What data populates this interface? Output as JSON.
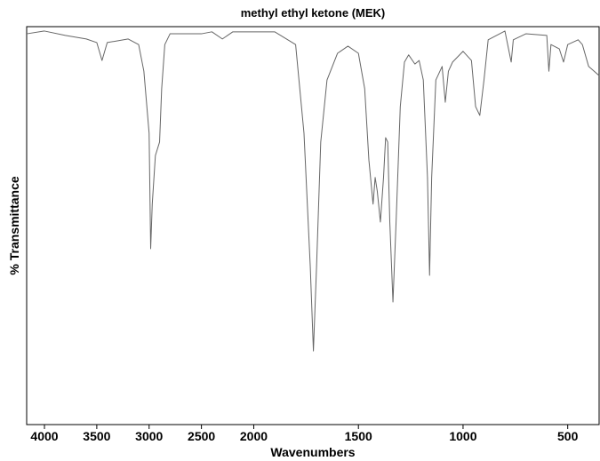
{
  "chart_data": {
    "type": "line",
    "title": "methyl ethyl ketone (MEK)",
    "x_label": "Wavenumbers",
    "y_label": "% Transmittance",
    "xlim": [
      4170,
      350
    ],
    "xticks": [
      4000,
      3500,
      3000,
      2500,
      2000,
      1500,
      1000,
      500
    ],
    "x_scale_change": {
      "at": 2000,
      "factor": 2
    },
    "ylim": [
      0,
      100
    ],
    "grid": false,
    "x": [
      4170,
      4000,
      3800,
      3600,
      3500,
      3450,
      3400,
      3200,
      3100,
      3050,
      3000,
      2985,
      2970,
      2940,
      2900,
      2880,
      2850,
      2800,
      2500,
      2400,
      2300,
      2200,
      2000,
      1900,
      1800,
      1760,
      1730,
      1715,
      1700,
      1680,
      1650,
      1600,
      1550,
      1500,
      1470,
      1450,
      1430,
      1420,
      1410,
      1395,
      1380,
      1370,
      1360,
      1350,
      1335,
      1320,
      1300,
      1280,
      1260,
      1230,
      1210,
      1190,
      1170,
      1160,
      1150,
      1130,
      1100,
      1085,
      1070,
      1050,
      1000,
      960,
      940,
      920,
      900,
      880,
      800,
      770,
      760,
      700,
      600,
      590,
      580,
      540,
      520,
      500,
      450,
      430,
      400,
      350
    ],
    "series": [
      {
        "name": "MEK",
        "color": "#666666",
        "values": [
          98.2,
          98.9,
          97.8,
          96.9,
          96.0,
          91.5,
          96.0,
          96.9,
          95.5,
          88.8,
          73.2,
          44.2,
          55.4,
          67.6,
          71.0,
          84.4,
          95.5,
          98.2,
          98.2,
          98.7,
          96.9,
          98.7,
          98.7,
          98.7,
          95.5,
          73.2,
          39.7,
          18.5,
          39.7,
          71.0,
          86.6,
          93.3,
          95.1,
          93.3,
          84.4,
          66.5,
          55.4,
          62.1,
          58.7,
          50.9,
          62.1,
          72.1,
          71.0,
          50.9,
          30.8,
          50.9,
          79.9,
          91.1,
          92.9,
          90.6,
          91.5,
          86.6,
          62.1,
          37.5,
          62.1,
          86.6,
          90.0,
          81.0,
          88.8,
          91.1,
          93.8,
          91.5,
          79.9,
          77.7,
          86.6,
          96.7,
          98.9,
          91.1,
          96.7,
          98.2,
          97.8,
          88.8,
          95.5,
          94.4,
          91.1,
          95.5,
          96.7,
          95.5,
          90.0,
          87.7
        ]
      }
    ]
  }
}
